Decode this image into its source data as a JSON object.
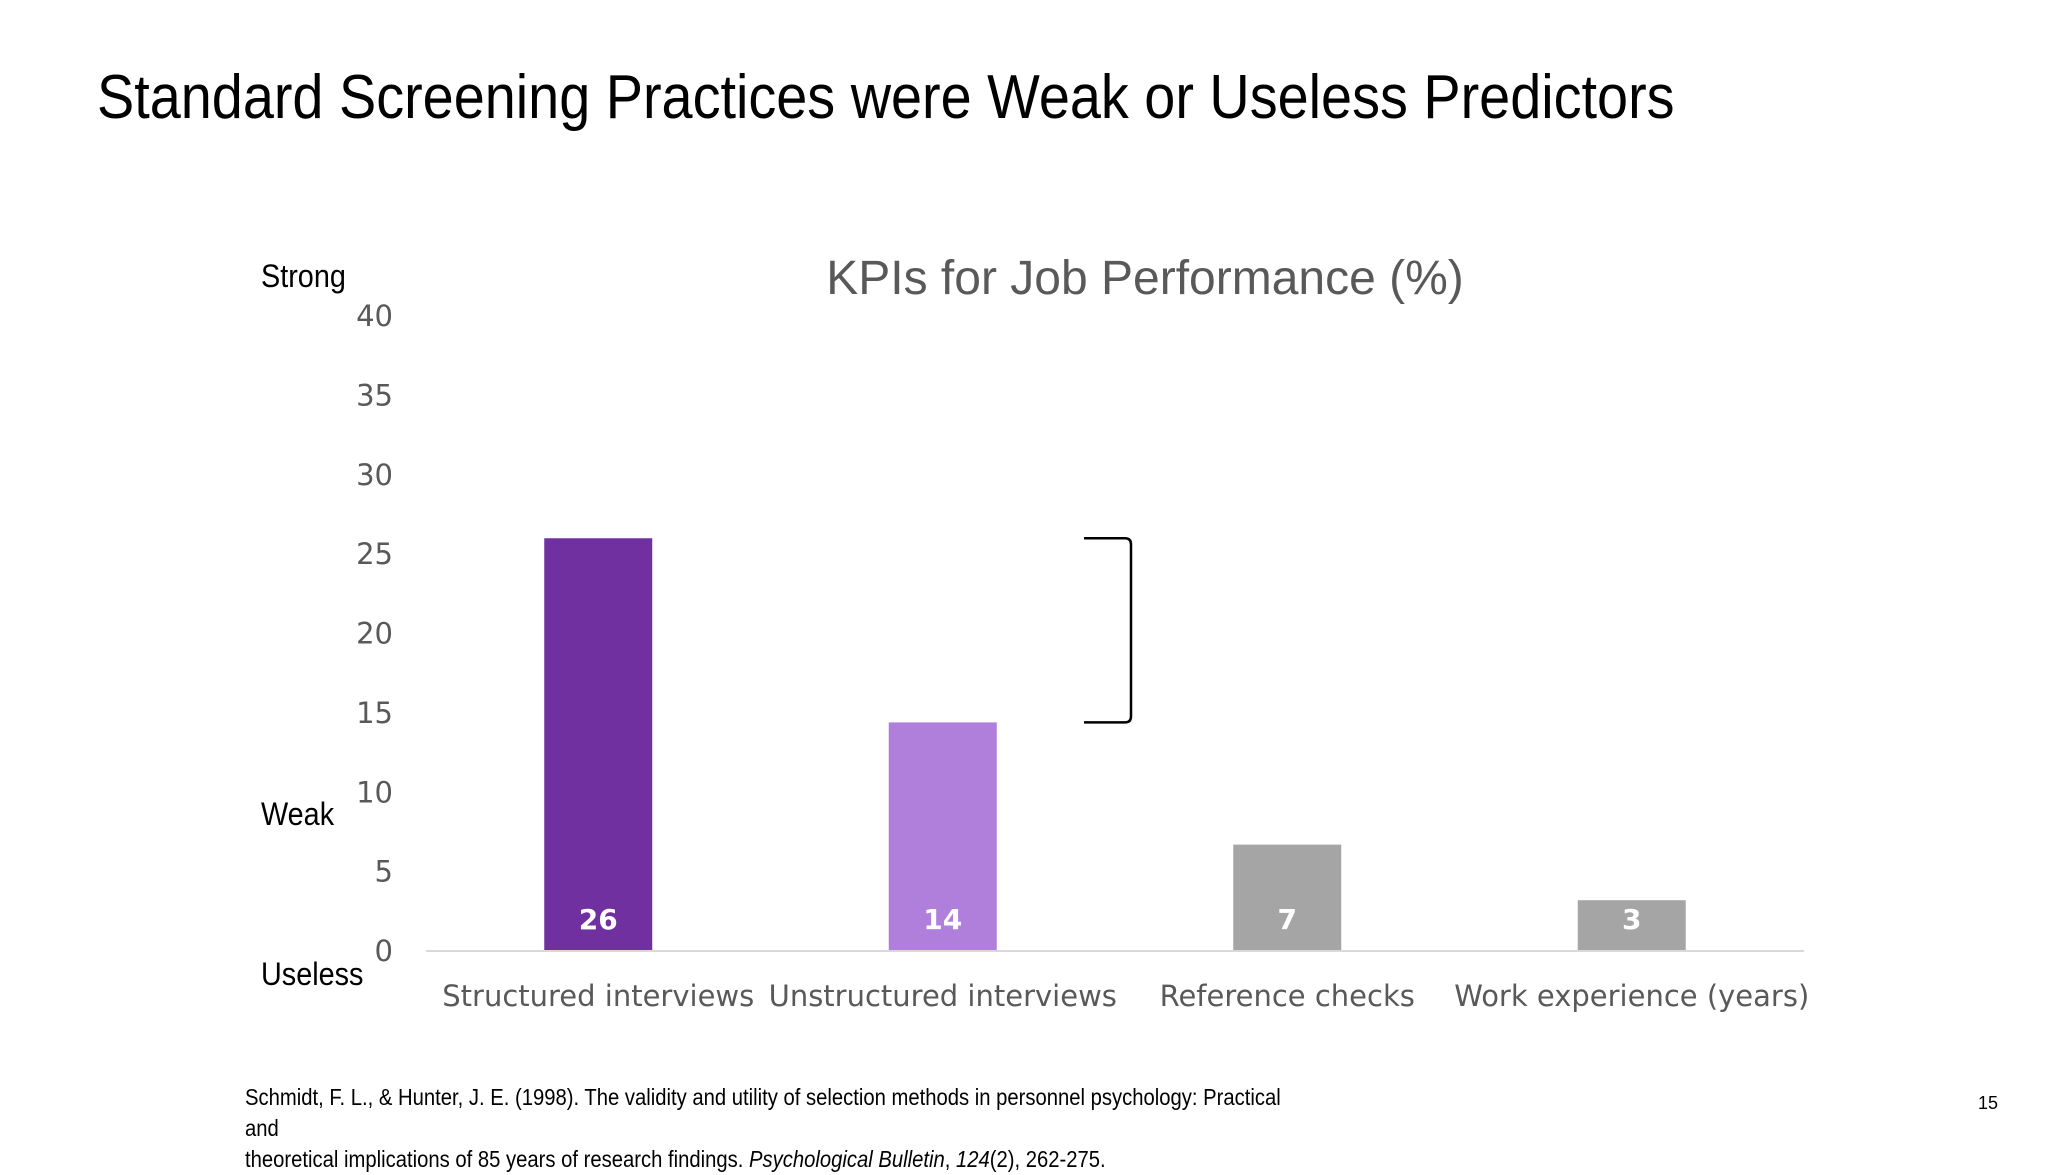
{
  "slide": {
    "title": "Standard Screening Practices were Weak or Useless Predictors",
    "page_number": "15"
  },
  "strength_labels": {
    "strong": "Strong",
    "weak": "Weak",
    "useless": "Useless"
  },
  "citation": {
    "line1": "Schmidt, F. L., & Hunter, J. E. (1998). The validity and utility of selection methods in personnel psychology: Practical and",
    "line2_pre": "theoretical implications of 85 years of research findings. ",
    "journal": "Psychological Bulletin",
    "sep1": ", ",
    "volume": "124",
    "rest": "(2), 262-275."
  },
  "colors": {
    "dark_purple": "#7030A0",
    "light_purple": "#AF7FDB",
    "gray": "#A6A5A6",
    "axis": "#D9D9D9"
  },
  "chart_data": {
    "type": "bar",
    "title": "KPIs for Job Performance (%)",
    "xlabel": "",
    "ylabel": "",
    "ylim": [
      0,
      40
    ],
    "yticks": [
      0,
      5,
      10,
      15,
      20,
      25,
      30,
      35,
      40
    ],
    "grid": false,
    "categories": [
      "Structured interviews",
      "Unstructured interviews",
      "Reference checks",
      "Work experience (years)"
    ],
    "values": [
      26,
      14.4,
      6.7,
      3.2
    ],
    "data_labels": [
      "26",
      "14",
      "7",
      "3"
    ],
    "bar_colors": [
      "#7030A0",
      "#AF7FDB",
      "#A6A5A6",
      "#A6A5A6"
    ],
    "annotations": [
      {
        "type": "bracket",
        "from_value": 26,
        "to_value": 14.4,
        "between_bars": [
          1,
          2
        ]
      }
    ]
  }
}
